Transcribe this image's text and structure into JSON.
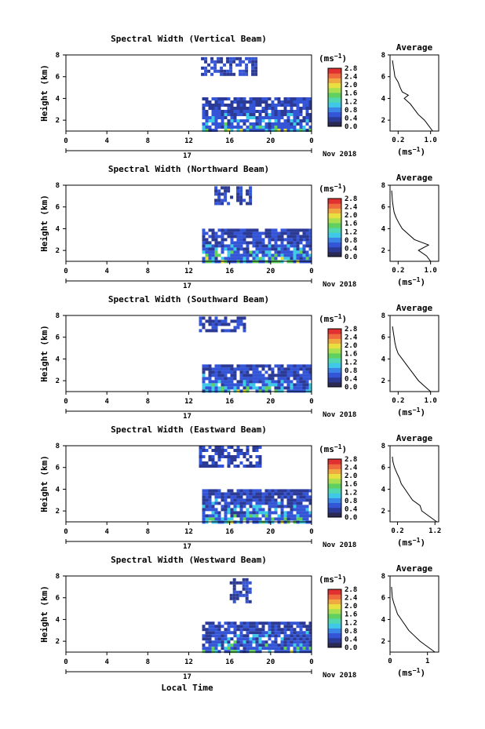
{
  "figure": {
    "x_axis_label": "Local Time",
    "date_label": "Nov 2018",
    "day_label": "17",
    "height_label": "Height (km)",
    "unit_label": "(ms",
    "unit_exp": "−1",
    "unit_close": ")",
    "avg_title": "Average",
    "colors": {
      "dark_blue": "#2b3a94",
      "mid_blue": "#3455d6",
      "cyan": "#40c8e8",
      "green": "#60d060",
      "yellow": "#e8e040",
      "line": "#000000"
    }
  },
  "chart_data": [
    {
      "type": "heatmap",
      "title": "Spectral Width (Vertical Beam)",
      "x_ticks": [
        "0",
        "4",
        "8",
        "12",
        "16",
        "20",
        "0"
      ],
      "y_ticks": [
        "2",
        "4",
        "6",
        "8"
      ],
      "xlim": [
        0,
        24
      ],
      "ylim": [
        1,
        8
      ],
      "colorbar": {
        "ticks": [
          "0.0",
          "0.4",
          "0.8",
          "1.2",
          "1.6",
          "2.0",
          "2.4",
          "2.8"
        ],
        "range": [
          0,
          2.8
        ]
      },
      "regions": [
        {
          "t": [
            13.2,
            18.5
          ],
          "h": [
            6.2,
            7.8
          ],
          "level": 0.1
        },
        {
          "t": [
            13.3,
            23.8
          ],
          "h": [
            1.0,
            4.1
          ],
          "level": 0.5
        }
      ],
      "average": {
        "xlabel": "(ms",
        "x_ticks": [
          "0.2",
          "1.0"
        ],
        "xlim": [
          0,
          1.2
        ],
        "y_ticks": [
          "2",
          "4",
          "6",
          "8"
        ],
        "profile": [
          [
            1.0,
            1.05
          ],
          [
            1.5,
            0.95
          ],
          [
            2.0,
            0.85
          ],
          [
            2.5,
            0.7
          ],
          [
            3.0,
            0.6
          ],
          [
            3.5,
            0.5
          ],
          [
            4.0,
            0.35
          ],
          [
            4.3,
            0.45
          ],
          [
            4.6,
            0.3
          ],
          [
            5.0,
            0.25
          ],
          [
            5.5,
            0.2
          ],
          [
            6.0,
            0.12
          ],
          [
            6.5,
            0.1
          ],
          [
            7.0,
            0.08
          ],
          [
            7.5,
            0.06
          ]
        ]
      }
    },
    {
      "type": "heatmap",
      "title": "Spectral Width (Northward Beam)",
      "x_ticks": [
        "0",
        "4",
        "8",
        "12",
        "16",
        "20",
        "0"
      ],
      "y_ticks": [
        "2",
        "4",
        "6",
        "8"
      ],
      "xlim": [
        0,
        24
      ],
      "ylim": [
        1,
        8
      ],
      "colorbar": {
        "ticks": [
          "0.0",
          "0.4",
          "0.8",
          "1.2",
          "1.6",
          "2.0",
          "2.4",
          "2.8"
        ],
        "range": [
          0,
          2.8
        ]
      },
      "regions": [
        {
          "t": [
            14.5,
            18.0
          ],
          "h": [
            6.3,
            7.9
          ],
          "level": 0.1
        },
        {
          "t": [
            13.3,
            23.8
          ],
          "h": [
            1.0,
            4.0
          ],
          "level": 0.5
        }
      ],
      "average": {
        "xlabel": "(ms",
        "x_ticks": [
          "0.2",
          "1.0"
        ],
        "xlim": [
          0,
          1.2
        ],
        "y_ticks": [
          "2",
          "4",
          "6",
          "8"
        ],
        "profile": [
          [
            1.0,
            1.0
          ],
          [
            1.5,
            0.9
          ],
          [
            2.0,
            0.7
          ],
          [
            2.5,
            0.95
          ],
          [
            3.0,
            0.6
          ],
          [
            3.5,
            0.45
          ],
          [
            4.0,
            0.3
          ],
          [
            4.5,
            0.22
          ],
          [
            5.0,
            0.15
          ],
          [
            5.5,
            0.1
          ],
          [
            6.0,
            0.08
          ],
          [
            6.5,
            0.06
          ],
          [
            7.0,
            0.05
          ],
          [
            7.5,
            0.04
          ]
        ]
      }
    },
    {
      "type": "heatmap",
      "title": "Spectral Width (Southward Beam)",
      "x_ticks": [
        "0",
        "4",
        "8",
        "12",
        "16",
        "20",
        "0"
      ],
      "y_ticks": [
        "2",
        "4",
        "6",
        "8"
      ],
      "xlim": [
        0,
        24
      ],
      "ylim": [
        1,
        8
      ],
      "colorbar": {
        "ticks": [
          "0.0",
          "0.4",
          "0.8",
          "1.2",
          "1.6",
          "2.0",
          "2.4",
          "2.8"
        ],
        "range": [
          0,
          2.8
        ]
      },
      "regions": [
        {
          "t": [
            13.0,
            17.5
          ],
          "h": [
            6.5,
            7.9
          ],
          "level": 0.1
        },
        {
          "t": [
            13.3,
            23.8
          ],
          "h": [
            1.0,
            3.5
          ],
          "level": 0.5
        }
      ],
      "average": {
        "xlabel": "(ms",
        "x_ticks": [
          "0.2",
          "1.0"
        ],
        "xlim": [
          0,
          1.2
        ],
        "y_ticks": [
          "2",
          "4",
          "6",
          "8"
        ],
        "profile": [
          [
            1.0,
            1.0
          ],
          [
            1.5,
            0.85
          ],
          [
            2.0,
            0.7
          ],
          [
            2.5,
            0.6
          ],
          [
            3.0,
            0.5
          ],
          [
            3.5,
            0.4
          ],
          [
            4.0,
            0.3
          ],
          [
            4.5,
            0.2
          ],
          [
            5.0,
            0.15
          ],
          [
            5.5,
            0.12
          ],
          [
            6.0,
            0.1
          ],
          [
            6.5,
            0.08
          ],
          [
            7.0,
            0.06
          ]
        ]
      }
    },
    {
      "type": "heatmap",
      "title": "Spectral Width (Eastward Beam)",
      "x_ticks": [
        "0",
        "4",
        "8",
        "12",
        "16",
        "20",
        "0"
      ],
      "y_ticks": [
        "2",
        "4",
        "6",
        "8"
      ],
      "xlim": [
        0,
        24
      ],
      "ylim": [
        1,
        8
      ],
      "colorbar": {
        "ticks": [
          "0.0",
          "0.4",
          "0.8",
          "1.2",
          "1.6",
          "2.0",
          "2.4",
          "2.8"
        ],
        "range": [
          0,
          2.8
        ]
      },
      "regions": [
        {
          "t": [
            13.0,
            19.0
          ],
          "h": [
            6.0,
            8.0
          ],
          "level": 0.1
        },
        {
          "t": [
            13.3,
            23.8
          ],
          "h": [
            1.0,
            4.0
          ],
          "level": 0.5
        }
      ],
      "average": {
        "xlabel": "(ms",
        "x_ticks": [
          "0.2",
          "1.2"
        ],
        "xlim": [
          0,
          1.3
        ],
        "y_ticks": [
          "2",
          "4",
          "6",
          "8"
        ],
        "profile": [
          [
            1.0,
            1.25
          ],
          [
            1.5,
            1.05
          ],
          [
            2.0,
            0.85
          ],
          [
            2.5,
            0.8
          ],
          [
            3.0,
            0.6
          ],
          [
            3.5,
            0.5
          ],
          [
            4.0,
            0.4
          ],
          [
            4.5,
            0.3
          ],
          [
            5.0,
            0.25
          ],
          [
            5.5,
            0.18
          ],
          [
            6.0,
            0.12
          ],
          [
            6.5,
            0.08
          ],
          [
            7.0,
            0.06
          ]
        ]
      }
    },
    {
      "type": "heatmap",
      "title": "Spectral Width (Westward Beam)",
      "x_ticks": [
        "0",
        "4",
        "8",
        "12",
        "16",
        "20",
        "0"
      ],
      "y_ticks": [
        "2",
        "4",
        "6",
        "8"
      ],
      "xlim": [
        0,
        24
      ],
      "ylim": [
        1,
        8
      ],
      "colorbar": {
        "ticks": [
          "0.0",
          "0.4",
          "0.8",
          "1.2",
          "1.6",
          "2.0",
          "2.4",
          "2.8"
        ],
        "range": [
          0,
          2.8
        ]
      },
      "regions": [
        {
          "t": [
            16.0,
            18.0
          ],
          "h": [
            5.5,
            7.8
          ],
          "level": 0.1
        },
        {
          "t": [
            13.3,
            23.8
          ],
          "h": [
            1.0,
            3.8
          ],
          "level": 0.5
        }
      ],
      "average": {
        "xlabel": "(ms",
        "x_ticks": [
          "0",
          "1"
        ],
        "xlim": [
          0,
          1.3
        ],
        "y_ticks": [
          "2",
          "4",
          "6",
          "8"
        ],
        "profile": [
          [
            1.0,
            1.2
          ],
          [
            1.5,
            1.0
          ],
          [
            2.0,
            0.8
          ],
          [
            2.5,
            0.65
          ],
          [
            3.0,
            0.5
          ],
          [
            3.5,
            0.4
          ],
          [
            4.0,
            0.3
          ],
          [
            4.5,
            0.2
          ],
          [
            5.0,
            0.15
          ],
          [
            5.5,
            0.1
          ],
          [
            6.0,
            0.06
          ],
          [
            6.5,
            0.05
          ],
          [
            7.0,
            0.04
          ]
        ]
      }
    }
  ]
}
